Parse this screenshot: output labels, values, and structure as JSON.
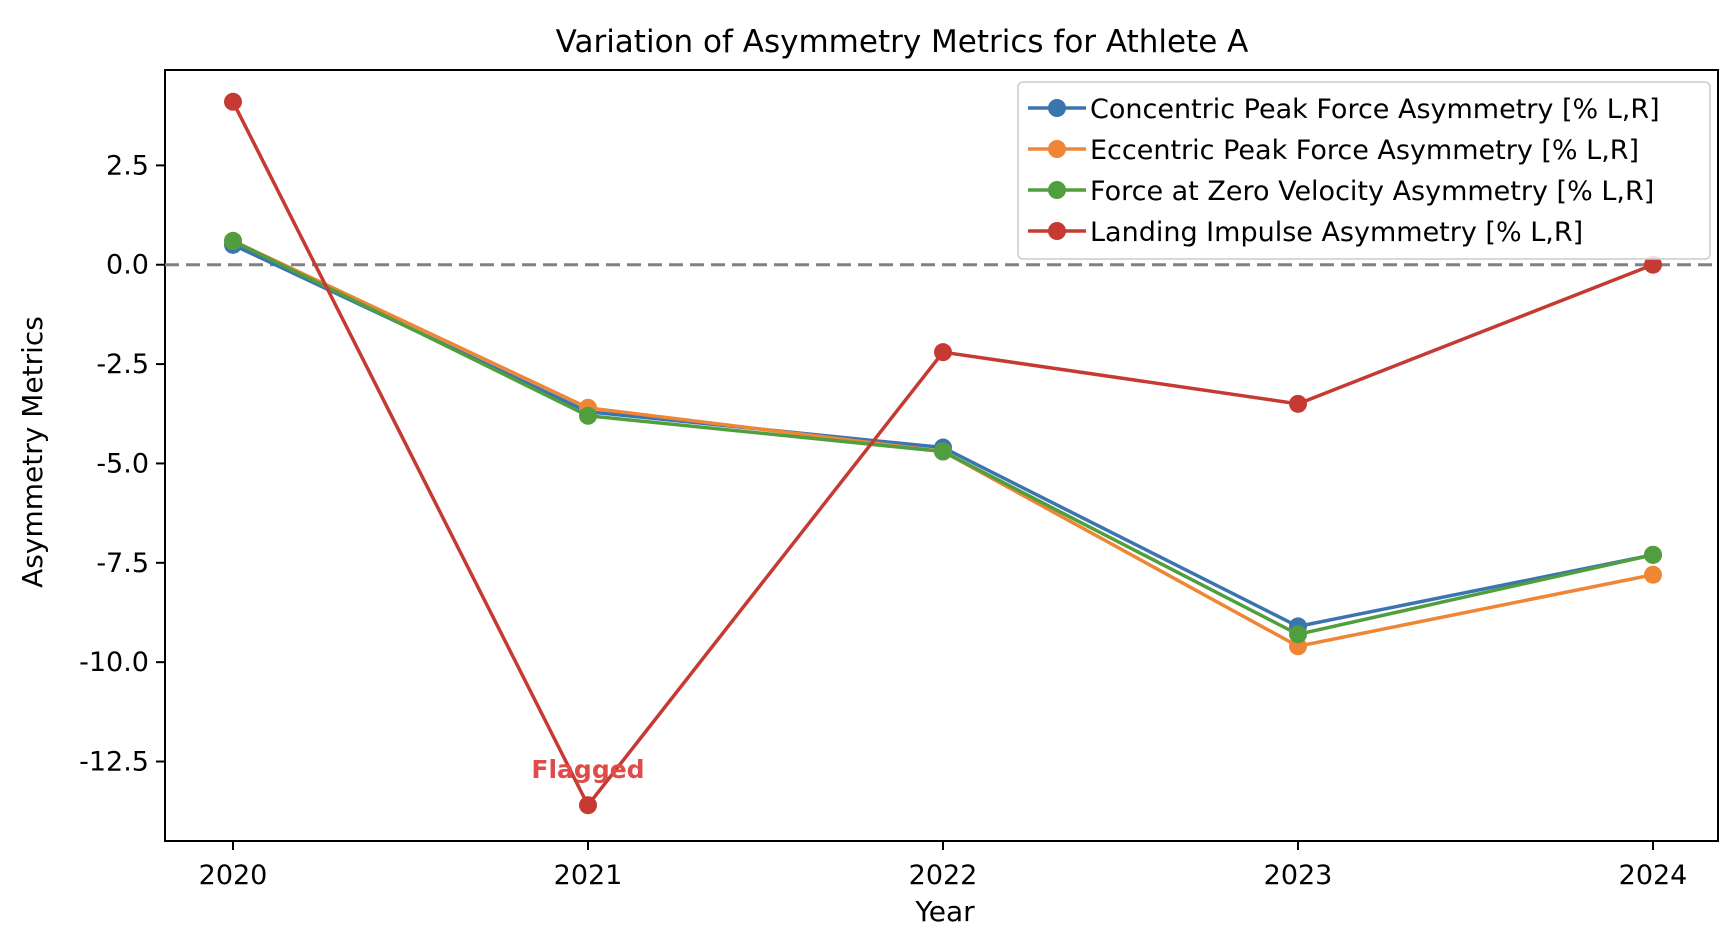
{
  "chart_data": {
    "type": "line",
    "title": "Variation of Asymmetry Metrics for Athlete A",
    "xlabel": "Year",
    "ylabel": "Asymmetry Metrics",
    "categories": [
      "2020",
      "2021",
      "2022",
      "2023",
      "2024"
    ],
    "ylim": [
      -14.5,
      4.9
    ],
    "yticks": [
      2.5,
      0.0,
      -2.5,
      -5.0,
      -7.5,
      -10.0,
      -12.5
    ],
    "ytick_labels": [
      "2.5",
      "0.0",
      "-2.5",
      "-5.0",
      "-7.5",
      "-10.0",
      "-12.5"
    ],
    "reference_line": {
      "y": 0,
      "style": "dashed",
      "color": "#808080"
    },
    "grid": false,
    "legend_position": "top-right",
    "series": [
      {
        "name": "Concentric Peak Force Asymmetry [% L,R]",
        "color": "#3b75af",
        "values": [
          0.5,
          -3.7,
          -4.6,
          -9.1,
          -7.3
        ]
      },
      {
        "name": "Eccentric Peak Force Asymmetry [% L,R]",
        "color": "#ef8636",
        "values": [
          0.6,
          -3.6,
          -4.7,
          -9.6,
          -7.8
        ]
      },
      {
        "name": "Force at Zero Velocity Asymmetry [% L,R]",
        "color": "#519e3e",
        "values": [
          0.6,
          -3.8,
          -4.7,
          -9.3,
          -7.3
        ]
      },
      {
        "name": "Landing Impulse Asymmetry [% L,R]",
        "color": "#c53a32",
        "values": [
          4.1,
          -13.6,
          -2.2,
          -3.5,
          0.0
        ]
      }
    ],
    "annotations": [
      {
        "text": "Flagged",
        "series": "Landing Impulse Asymmetry [% L,R]",
        "category": "2021"
      }
    ]
  }
}
